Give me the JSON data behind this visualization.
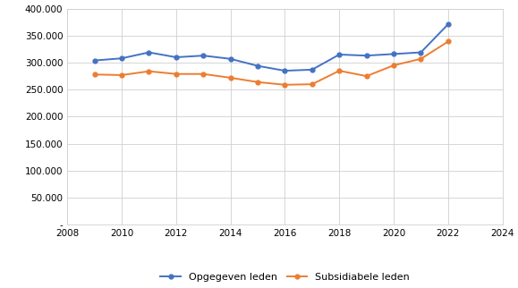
{
  "years": [
    2009,
    2010,
    2011,
    2012,
    2013,
    2014,
    2015,
    2016,
    2017,
    2018,
    2019,
    2020,
    2021,
    2022
  ],
  "opgegeven_leden": [
    304000,
    308000,
    319000,
    310000,
    313000,
    307000,
    294000,
    285000,
    287000,
    315000,
    313000,
    316000,
    319000,
    371000
  ],
  "subsidiabele_leden": [
    278000,
    277000,
    284000,
    279000,
    279000,
    272000,
    264000,
    259000,
    260000,
    285000,
    275000,
    295000,
    307000,
    339000
  ],
  "line_color_blauw": "#4472C4",
  "line_color_oranje": "#ED7D31",
  "legend_blauw": "Opgegeven leden",
  "legend_oranje": "Subsidiabele leden",
  "xlim": [
    2008,
    2024
  ],
  "ylim": [
    0,
    400000
  ],
  "yticks": [
    0,
    50000,
    100000,
    150000,
    200000,
    250000,
    300000,
    350000,
    400000
  ],
  "xticks": [
    2008,
    2010,
    2012,
    2014,
    2016,
    2018,
    2020,
    2022,
    2024
  ],
  "grid_color": "#D0D0D0",
  "background_color": "#FFFFFF",
  "marker": "o",
  "marker_size": 3.5,
  "linewidth": 1.4,
  "tick_fontsize": 7.5,
  "legend_fontsize": 8
}
